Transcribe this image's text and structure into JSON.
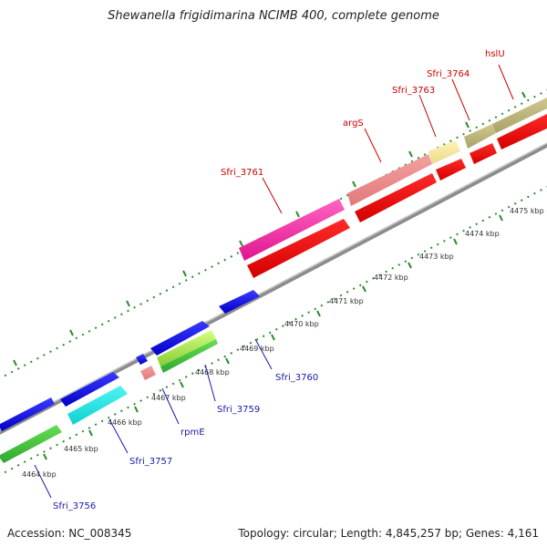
{
  "title": "Shewanella frigidimarina NCIMB 400, complete genome",
  "footer": {
    "accession": "Accession: NC_008345",
    "topology": "Topology: circular; Length: 4,845,257 bp; Genes: 4,161"
  },
  "colors": {
    "backbone": "#8c8c8c",
    "tick": "#2e8b2e",
    "label_upper": "#cc0000",
    "label_lower": "#1a1aaa"
  },
  "kbp_labels": [
    "4464 kbp",
    "4465 kbp",
    "4466 kbp",
    "4467 kbp",
    "4468 kbp",
    "4469 kbp",
    "4470 kbp",
    "4471 kbp",
    "4472 kbp",
    "4473 kbp",
    "4474 kbp",
    "4475 kbp"
  ],
  "gene_labels_upper": [
    "Sfri_3761",
    "argS",
    "Sfri_3763",
    "Sfri_3764",
    "hslU"
  ],
  "gene_labels_lower": [
    "Sfri_3756",
    "Sfri_3757",
    "rpmE",
    "Sfri_3759",
    "Sfri_3760"
  ]
}
